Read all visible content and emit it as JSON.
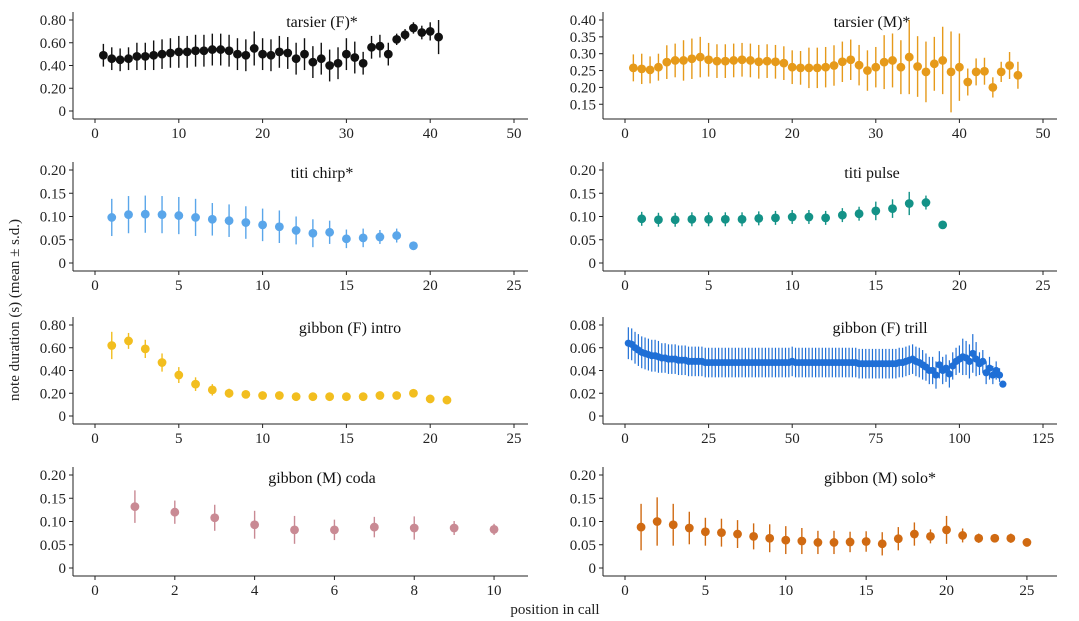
{
  "figure": {
    "ylabel": "note duration (s) (mean ± s.d.)",
    "xlabel": "position in call"
  },
  "chart_data": [
    {
      "type": "scatter",
      "title": "tarsier (F)*",
      "color": "#111111",
      "xlim": [
        0,
        50
      ],
      "ylim": [
        0,
        0.8
      ],
      "xticks": [
        0,
        10,
        20,
        30,
        40,
        50
      ],
      "yticks": [
        0,
        0.2,
        0.4,
        0.6,
        0.8
      ],
      "ytick_labels": [
        "0",
        "0.20",
        "0.40",
        "0.60",
        "0.80"
      ],
      "x": [
        1,
        2,
        3,
        4,
        5,
        6,
        7,
        8,
        9,
        10,
        11,
        12,
        13,
        14,
        15,
        16,
        17,
        18,
        19,
        20,
        21,
        22,
        23,
        24,
        25,
        26,
        27,
        28,
        29,
        30,
        31,
        32,
        33,
        34,
        35,
        36,
        37,
        38,
        39,
        40,
        41
      ],
      "y": [
        0.49,
        0.46,
        0.45,
        0.46,
        0.48,
        0.48,
        0.49,
        0.5,
        0.51,
        0.52,
        0.52,
        0.53,
        0.53,
        0.54,
        0.54,
        0.53,
        0.5,
        0.49,
        0.55,
        0.5,
        0.49,
        0.52,
        0.51,
        0.46,
        0.5,
        0.43,
        0.46,
        0.4,
        0.42,
        0.5,
        0.47,
        0.42,
        0.56,
        0.57,
        0.5,
        0.63,
        0.67,
        0.73,
        0.69,
        0.7,
        0.65
      ],
      "sd": [
        0.1,
        0.1,
        0.1,
        0.1,
        0.12,
        0.12,
        0.13,
        0.13,
        0.13,
        0.14,
        0.14,
        0.14,
        0.14,
        0.14,
        0.14,
        0.14,
        0.14,
        0.14,
        0.15,
        0.14,
        0.14,
        0.14,
        0.14,
        0.14,
        0.14,
        0.14,
        0.14,
        0.14,
        0.14,
        0.14,
        0.14,
        0.1,
        0.1,
        0.1,
        0.1,
        0.05,
        0.05,
        0.05,
        0.06,
        0.08,
        0.15
      ]
    },
    {
      "type": "scatter",
      "title": "tarsier (M)*",
      "color": "#E69A1A",
      "xlim": [
        0,
        50
      ],
      "ylim": [
        0.13,
        0.4
      ],
      "xticks": [
        0,
        10,
        20,
        30,
        40,
        50
      ],
      "yticks": [
        0.15,
        0.2,
        0.25,
        0.3,
        0.35,
        0.4
      ],
      "ytick_labels": [
        "0.15",
        "0.20",
        "0.25",
        "0.30",
        "0.35",
        "0.40"
      ],
      "x": [
        1,
        2,
        3,
        4,
        5,
        6,
        7,
        8,
        9,
        10,
        11,
        12,
        13,
        14,
        15,
        16,
        17,
        18,
        19,
        20,
        21,
        22,
        23,
        24,
        25,
        26,
        27,
        28,
        29,
        30,
        31,
        32,
        33,
        34,
        35,
        36,
        37,
        38,
        39,
        40,
        41,
        42,
        43,
        44,
        45,
        46,
        47
      ],
      "y": [
        0.258,
        0.255,
        0.252,
        0.26,
        0.275,
        0.28,
        0.28,
        0.285,
        0.29,
        0.282,
        0.278,
        0.278,
        0.28,
        0.282,
        0.28,
        0.276,
        0.278,
        0.276,
        0.272,
        0.26,
        0.258,
        0.258,
        0.258,
        0.26,
        0.265,
        0.276,
        0.282,
        0.266,
        0.25,
        0.26,
        0.275,
        0.28,
        0.26,
        0.29,
        0.262,
        0.246,
        0.27,
        0.28,
        0.246,
        0.26,
        0.216,
        0.246,
        0.248,
        0.2,
        0.246,
        0.265,
        0.236
      ],
      "sd": [
        0.04,
        0.045,
        0.04,
        0.04,
        0.05,
        0.05,
        0.06,
        0.06,
        0.06,
        0.05,
        0.05,
        0.05,
        0.05,
        0.05,
        0.05,
        0.05,
        0.05,
        0.05,
        0.05,
        0.05,
        0.05,
        0.06,
        0.06,
        0.06,
        0.06,
        0.06,
        0.06,
        0.06,
        0.06,
        0.06,
        0.08,
        0.08,
        0.08,
        0.11,
        0.09,
        0.09,
        0.08,
        0.1,
        0.12,
        0.1,
        0.04,
        0.04,
        0.04,
        0.03,
        0.03,
        0.04,
        0.04
      ]
    },
    {
      "type": "scatter",
      "title": "titi chirp*",
      "color": "#5AA6EA",
      "xlim": [
        0,
        25
      ],
      "ylim": [
        0,
        0.2
      ],
      "xticks": [
        0,
        5,
        10,
        15,
        20,
        25
      ],
      "yticks": [
        0,
        0.05,
        0.1,
        0.15,
        0.2
      ],
      "ytick_labels": [
        "0",
        "0.05",
        "0.10",
        "0.15",
        "0.20"
      ],
      "x": [
        1,
        2,
        3,
        4,
        5,
        6,
        7,
        8,
        9,
        10,
        11,
        12,
        13,
        14,
        15,
        16,
        17,
        18,
        19
      ],
      "y": [
        0.098,
        0.104,
        0.105,
        0.104,
        0.102,
        0.098,
        0.094,
        0.091,
        0.087,
        0.082,
        0.078,
        0.07,
        0.064,
        0.066,
        0.052,
        0.054,
        0.056,
        0.059,
        0.037
      ],
      "sd": [
        0.04,
        0.04,
        0.04,
        0.04,
        0.04,
        0.04,
        0.035,
        0.035,
        0.035,
        0.035,
        0.035,
        0.03,
        0.03,
        0.025,
        0.02,
        0.02,
        0.015,
        0.015,
        0.005
      ]
    },
    {
      "type": "scatter",
      "title": "titi pulse",
      "color": "#139287",
      "xlim": [
        0,
        25
      ],
      "ylim": [
        0,
        0.2
      ],
      "xticks": [
        0,
        5,
        10,
        15,
        20,
        25
      ],
      "yticks": [
        0,
        0.05,
        0.1,
        0.15,
        0.2
      ],
      "ytick_labels": [
        "0",
        "0.05",
        "0.10",
        "0.15",
        "0.20"
      ],
      "x": [
        1,
        2,
        3,
        4,
        5,
        6,
        7,
        8,
        9,
        10,
        11,
        12,
        13,
        14,
        15,
        16,
        17,
        18,
        19
      ],
      "y": [
        0.095,
        0.093,
        0.093,
        0.094,
        0.094,
        0.094,
        0.094,
        0.096,
        0.097,
        0.099,
        0.099,
        0.097,
        0.103,
        0.106,
        0.112,
        0.117,
        0.128,
        0.13,
        0.082
      ],
      "sd": [
        0.015,
        0.015,
        0.015,
        0.015,
        0.015,
        0.015,
        0.015,
        0.015,
        0.015,
        0.015,
        0.015,
        0.015,
        0.015,
        0.015,
        0.02,
        0.02,
        0.025,
        0.015,
        0.002
      ]
    },
    {
      "type": "scatter",
      "title": "gibbon (F) intro",
      "color": "#F2BE1F",
      "xlim": [
        0,
        25
      ],
      "ylim": [
        0,
        0.8
      ],
      "xticks": [
        0,
        5,
        10,
        15,
        20,
        25
      ],
      "yticks": [
        0,
        0.2,
        0.4,
        0.6,
        0.8
      ],
      "ytick_labels": [
        "0",
        "0.20",
        "0.40",
        "0.60",
        "0.80"
      ],
      "x": [
        1,
        2,
        3,
        4,
        5,
        6,
        7,
        8,
        9,
        10,
        11,
        12,
        13,
        14,
        15,
        16,
        17,
        18,
        19,
        20,
        21
      ],
      "y": [
        0.62,
        0.66,
        0.59,
        0.47,
        0.36,
        0.28,
        0.23,
        0.2,
        0.19,
        0.18,
        0.18,
        0.17,
        0.17,
        0.17,
        0.17,
        0.17,
        0.18,
        0.18,
        0.2,
        0.15,
        0.14
      ],
      "sd": [
        0.12,
        0.07,
        0.08,
        0.08,
        0.07,
        0.06,
        0.05,
        0.04,
        0.03,
        0.03,
        0.02,
        0.02,
        0.02,
        0.02,
        0.02,
        0.02,
        0.02,
        0.02,
        0.03,
        0.02,
        0.02
      ]
    },
    {
      "type": "scatter",
      "title": "gibbon (F) trill",
      "color": "#1F6FD6",
      "xlim": [
        0,
        125
      ],
      "ylim": [
        0,
        0.08
      ],
      "xticks": [
        0,
        25,
        50,
        75,
        100,
        125
      ],
      "yticks": [
        0,
        0.02,
        0.04,
        0.06,
        0.08
      ],
      "ytick_labels": [
        "0",
        "0.02",
        "0.04",
        "0.06",
        "0.08"
      ],
      "x": [
        1,
        2,
        3,
        4,
        5,
        6,
        7,
        8,
        9,
        10,
        11,
        12,
        13,
        14,
        15,
        16,
        17,
        18,
        19,
        20,
        21,
        22,
        23,
        24,
        25,
        26,
        27,
        28,
        29,
        30,
        31,
        32,
        33,
        34,
        35,
        36,
        37,
        38,
        39,
        40,
        41,
        42,
        43,
        44,
        45,
        46,
        47,
        48,
        49,
        50,
        51,
        52,
        53,
        54,
        55,
        56,
        57,
        58,
        59,
        60,
        61,
        62,
        63,
        64,
        65,
        66,
        67,
        68,
        69,
        70,
        71,
        72,
        73,
        74,
        75,
        76,
        77,
        78,
        79,
        80,
        81,
        82,
        83,
        84,
        85,
        86,
        87,
        88,
        89,
        90,
        91,
        92,
        93,
        94,
        95,
        96,
        97,
        98,
        99,
        100,
        101,
        102,
        103,
        104,
        105,
        106,
        107,
        108,
        109,
        110,
        111,
        112,
        113
      ],
      "y": [
        0.064,
        0.063,
        0.06,
        0.058,
        0.056,
        0.055,
        0.054,
        0.053,
        0.053,
        0.052,
        0.051,
        0.051,
        0.05,
        0.05,
        0.05,
        0.049,
        0.049,
        0.049,
        0.048,
        0.048,
        0.048,
        0.048,
        0.048,
        0.047,
        0.047,
        0.047,
        0.047,
        0.047,
        0.047,
        0.047,
        0.047,
        0.047,
        0.047,
        0.047,
        0.047,
        0.047,
        0.047,
        0.047,
        0.047,
        0.047,
        0.047,
        0.047,
        0.047,
        0.047,
        0.047,
        0.047,
        0.047,
        0.047,
        0.047,
        0.048,
        0.047,
        0.047,
        0.047,
        0.047,
        0.047,
        0.047,
        0.047,
        0.047,
        0.047,
        0.047,
        0.047,
        0.047,
        0.047,
        0.047,
        0.047,
        0.047,
        0.047,
        0.047,
        0.047,
        0.046,
        0.046,
        0.046,
        0.046,
        0.046,
        0.046,
        0.046,
        0.046,
        0.046,
        0.046,
        0.046,
        0.046,
        0.047,
        0.047,
        0.048,
        0.049,
        0.05,
        0.048,
        0.047,
        0.045,
        0.043,
        0.04,
        0.04,
        0.036,
        0.045,
        0.04,
        0.042,
        0.037,
        0.044,
        0.048,
        0.05,
        0.052,
        0.051,
        0.048,
        0.055,
        0.05,
        0.046,
        0.048,
        0.038,
        0.042,
        0.036,
        0.04,
        0.036,
        0.028
      ],
      "sd": [
        0.014,
        0.014,
        0.014,
        0.014,
        0.014,
        0.014,
        0.014,
        0.014,
        0.014,
        0.014,
        0.013,
        0.013,
        0.013,
        0.013,
        0.013,
        0.013,
        0.013,
        0.013,
        0.013,
        0.013,
        0.013,
        0.013,
        0.013,
        0.013,
        0.013,
        0.013,
        0.013,
        0.013,
        0.013,
        0.013,
        0.013,
        0.013,
        0.013,
        0.013,
        0.013,
        0.013,
        0.013,
        0.013,
        0.013,
        0.013,
        0.013,
        0.013,
        0.013,
        0.013,
        0.013,
        0.013,
        0.013,
        0.013,
        0.013,
        0.013,
        0.013,
        0.013,
        0.013,
        0.013,
        0.013,
        0.013,
        0.013,
        0.013,
        0.013,
        0.013,
        0.013,
        0.013,
        0.013,
        0.013,
        0.013,
        0.013,
        0.013,
        0.013,
        0.013,
        0.013,
        0.013,
        0.013,
        0.013,
        0.013,
        0.013,
        0.013,
        0.013,
        0.013,
        0.013,
        0.013,
        0.013,
        0.013,
        0.013,
        0.013,
        0.013,
        0.013,
        0.013,
        0.013,
        0.013,
        0.012,
        0.012,
        0.012,
        0.012,
        0.012,
        0.012,
        0.012,
        0.012,
        0.012,
        0.012,
        0.012,
        0.016,
        0.015,
        0.015,
        0.017,
        0.015,
        0.01,
        0.01,
        0.01,
        0.01,
        0.008,
        0.008,
        0.006,
        0.002
      ]
    },
    {
      "type": "scatter",
      "title": "gibbon (M) coda",
      "color": "#C98A94",
      "xlim": [
        0,
        10.5
      ],
      "ylim": [
        0,
        0.2
      ],
      "xticks": [
        0,
        2,
        4,
        6,
        8,
        10
      ],
      "yticks": [
        0,
        0.05,
        0.1,
        0.15,
        0.2
      ],
      "ytick_labels": [
        "0",
        "0.05",
        "0.10",
        "0.15",
        "0.20"
      ],
      "x": [
        1,
        2,
        3,
        4,
        5,
        6,
        7,
        8,
        9,
        10
      ],
      "y": [
        0.132,
        0.12,
        0.108,
        0.093,
        0.082,
        0.082,
        0.088,
        0.086,
        0.086,
        0.083
      ],
      "sd": [
        0.035,
        0.025,
        0.028,
        0.03,
        0.03,
        0.022,
        0.022,
        0.025,
        0.015,
        0.012
      ]
    },
    {
      "type": "scatter",
      "title": "gibbon (M) solo*",
      "color": "#D06A12",
      "xlim": [
        0,
        26
      ],
      "ylim": [
        0,
        0.2
      ],
      "xticks": [
        0,
        5,
        10,
        15,
        20,
        25
      ],
      "yticks": [
        0,
        0.05,
        0.1,
        0.15,
        0.2
      ],
      "ytick_labels": [
        "0",
        "0.05",
        "0.10",
        "0.15",
        "0.20"
      ],
      "x": [
        1,
        2,
        3,
        4,
        5,
        6,
        7,
        8,
        9,
        10,
        11,
        12,
        13,
        14,
        15,
        16,
        17,
        18,
        19,
        20,
        21,
        22,
        23,
        24,
        25
      ],
      "y": [
        0.088,
        0.1,
        0.093,
        0.086,
        0.078,
        0.076,
        0.073,
        0.068,
        0.064,
        0.06,
        0.058,
        0.055,
        0.055,
        0.056,
        0.057,
        0.052,
        0.063,
        0.073,
        0.068,
        0.082,
        0.07,
        0.064,
        0.064,
        0.064,
        0.055
      ],
      "sd": [
        0.05,
        0.052,
        0.045,
        0.035,
        0.03,
        0.03,
        0.03,
        0.028,
        0.03,
        0.03,
        0.028,
        0.025,
        0.025,
        0.022,
        0.022,
        0.025,
        0.025,
        0.025,
        0.015,
        0.03,
        0.015,
        0.01,
        0.008,
        0.01,
        0.006
      ]
    }
  ]
}
